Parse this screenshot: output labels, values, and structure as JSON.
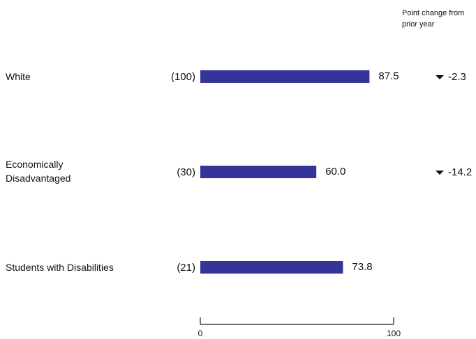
{
  "chart_data": {
    "type": "bar",
    "orientation": "horizontal",
    "change_header": [
      "Point change from",
      "prior year"
    ],
    "rows": [
      {
        "label_lines": [
          "White"
        ],
        "count": "(100)",
        "value": 87.5,
        "value_label": "87.5",
        "change": "-2.3",
        "change_direction": "down"
      },
      {
        "label_lines": [
          "Economically",
          "Disadvantaged"
        ],
        "count": "(30)",
        "value": 60.0,
        "value_label": "60.0",
        "change": "-14.2",
        "change_direction": "down"
      },
      {
        "label_lines": [
          "Students with Disabilities"
        ],
        "count": "(21)",
        "value": 73.8,
        "value_label": "73.8",
        "change": "",
        "change_direction": ""
      }
    ],
    "xlim": [
      0,
      100
    ],
    "x_ticks": [
      0,
      100
    ],
    "tick_labels": [
      "0",
      "100"
    ],
    "grid": false,
    "colors": {
      "bar": "#35349a",
      "axis": "#444444",
      "text": "#111111"
    }
  }
}
